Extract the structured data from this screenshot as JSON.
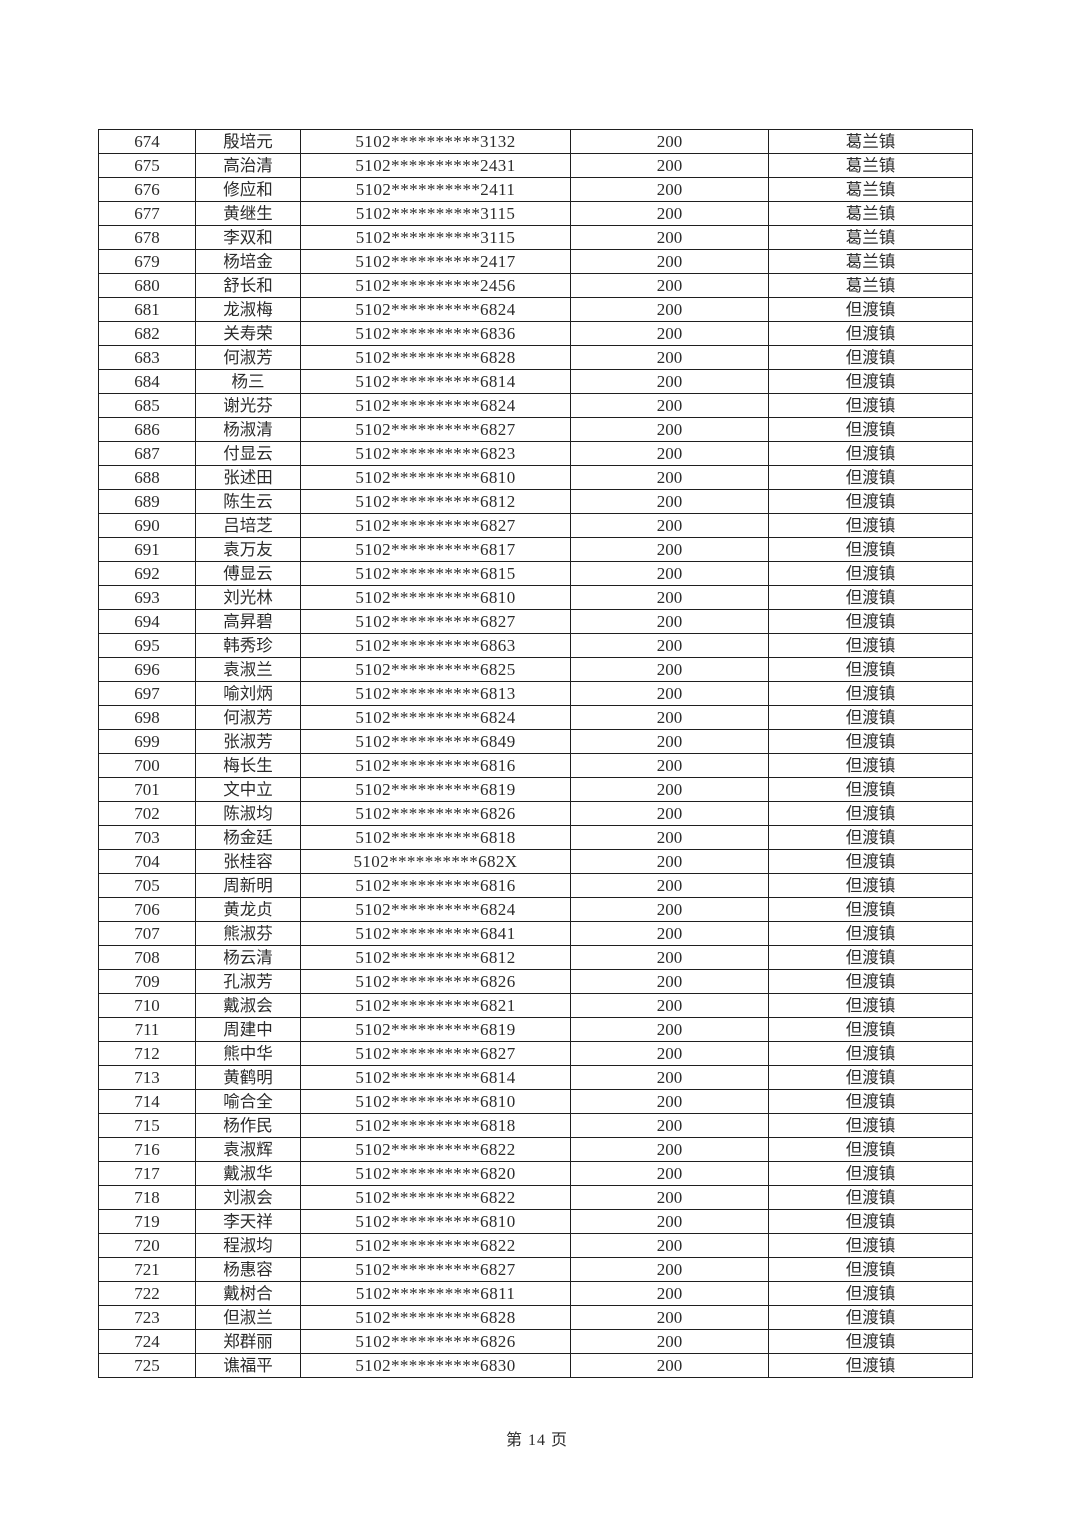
{
  "theme": {
    "page_bg": "#ffffff",
    "text_color": "#2b2b2b",
    "border_color": "#1f1f1f"
  },
  "page": {
    "footer_page_label": "第 14 页"
  },
  "table": {
    "row_cell_names": [
      "serial-cell",
      "name-cell",
      "masked-id-cell",
      "amount-cell",
      "town-cell"
    ],
    "rows": [
      [
        "674",
        "殷培元",
        "5102**********3132",
        "200",
        "葛兰镇"
      ],
      [
        "675",
        "高治清",
        "5102**********2431",
        "200",
        "葛兰镇"
      ],
      [
        "676",
        "修应和",
        "5102**********2411",
        "200",
        "葛兰镇"
      ],
      [
        "677",
        "黄继生",
        "5102**********3115",
        "200",
        "葛兰镇"
      ],
      [
        "678",
        "李双和",
        "5102**********3115",
        "200",
        "葛兰镇"
      ],
      [
        "679",
        "杨培金",
        "5102**********2417",
        "200",
        "葛兰镇"
      ],
      [
        "680",
        "舒长和",
        "5102**********2456",
        "200",
        "葛兰镇"
      ],
      [
        "681",
        "龙淑梅",
        "5102**********6824",
        "200",
        "但渡镇"
      ],
      [
        "682",
        "关寿荣",
        "5102**********6836",
        "200",
        "但渡镇"
      ],
      [
        "683",
        "何淑芳",
        "5102**********6828",
        "200",
        "但渡镇"
      ],
      [
        "684",
        "杨三",
        "5102**********6814",
        "200",
        "但渡镇"
      ],
      [
        "685",
        "谢光芬",
        "5102**********6824",
        "200",
        "但渡镇"
      ],
      [
        "686",
        "杨淑清",
        "5102**********6827",
        "200",
        "但渡镇"
      ],
      [
        "687",
        "付显云",
        "5102**********6823",
        "200",
        "但渡镇"
      ],
      [
        "688",
        "张述田",
        "5102**********6810",
        "200",
        "但渡镇"
      ],
      [
        "689",
        "陈生云",
        "5102**********6812",
        "200",
        "但渡镇"
      ],
      [
        "690",
        "吕培芝",
        "5102**********6827",
        "200",
        "但渡镇"
      ],
      [
        "691",
        "袁万友",
        "5102**********6817",
        "200",
        "但渡镇"
      ],
      [
        "692",
        "傅显云",
        "5102**********6815",
        "200",
        "但渡镇"
      ],
      [
        "693",
        "刘光林",
        "5102**********6810",
        "200",
        "但渡镇"
      ],
      [
        "694",
        "高昇碧",
        "5102**********6827",
        "200",
        "但渡镇"
      ],
      [
        "695",
        "韩秀珍",
        "5102**********6863",
        "200",
        "但渡镇"
      ],
      [
        "696",
        "袁淑兰",
        "5102**********6825",
        "200",
        "但渡镇"
      ],
      [
        "697",
        "喻刘炳",
        "5102**********6813",
        "200",
        "但渡镇"
      ],
      [
        "698",
        "何淑芳",
        "5102**********6824",
        "200",
        "但渡镇"
      ],
      [
        "699",
        "张淑芳",
        "5102**********6849",
        "200",
        "但渡镇"
      ],
      [
        "700",
        "梅长生",
        "5102**********6816",
        "200",
        "但渡镇"
      ],
      [
        "701",
        "文中立",
        "5102**********6819",
        "200",
        "但渡镇"
      ],
      [
        "702",
        "陈淑均",
        "5102**********6826",
        "200",
        "但渡镇"
      ],
      [
        "703",
        "杨金廷",
        "5102**********6818",
        "200",
        "但渡镇"
      ],
      [
        "704",
        "张桂容",
        "5102**********682X",
        "200",
        "但渡镇"
      ],
      [
        "705",
        "周新明",
        "5102**********6816",
        "200",
        "但渡镇"
      ],
      [
        "706",
        "黄龙贞",
        "5102**********6824",
        "200",
        "但渡镇"
      ],
      [
        "707",
        "熊淑芬",
        "5102**********6841",
        "200",
        "但渡镇"
      ],
      [
        "708",
        "杨云清",
        "5102**********6812",
        "200",
        "但渡镇"
      ],
      [
        "709",
        "孔淑芳",
        "5102**********6826",
        "200",
        "但渡镇"
      ],
      [
        "710",
        "戴淑会",
        "5102**********6821",
        "200",
        "但渡镇"
      ],
      [
        "711",
        "周建中",
        "5102**********6819",
        "200",
        "但渡镇"
      ],
      [
        "712",
        "熊中华",
        "5102**********6827",
        "200",
        "但渡镇"
      ],
      [
        "713",
        "黄鹤明",
        "5102**********6814",
        "200",
        "但渡镇"
      ],
      [
        "714",
        "喻合全",
        "5102**********6810",
        "200",
        "但渡镇"
      ],
      [
        "715",
        "杨作民",
        "5102**********6818",
        "200",
        "但渡镇"
      ],
      [
        "716",
        "袁淑辉",
        "5102**********6822",
        "200",
        "但渡镇"
      ],
      [
        "717",
        "戴淑华",
        "5102**********6820",
        "200",
        "但渡镇"
      ],
      [
        "718",
        "刘淑会",
        "5102**********6822",
        "200",
        "但渡镇"
      ],
      [
        "719",
        "李天祥",
        "5102**********6810",
        "200",
        "但渡镇"
      ],
      [
        "720",
        "程淑均",
        "5102**********6822",
        "200",
        "但渡镇"
      ],
      [
        "721",
        "杨惠容",
        "5102**********6827",
        "200",
        "但渡镇"
      ],
      [
        "722",
        "戴树合",
        "5102**********6811",
        "200",
        "但渡镇"
      ],
      [
        "723",
        "但淑兰",
        "5102**********6828",
        "200",
        "但渡镇"
      ],
      [
        "724",
        "郑群丽",
        "5102**********6826",
        "200",
        "但渡镇"
      ],
      [
        "725",
        "谯福平",
        "5102**********6830",
        "200",
        "但渡镇"
      ]
    ]
  }
}
